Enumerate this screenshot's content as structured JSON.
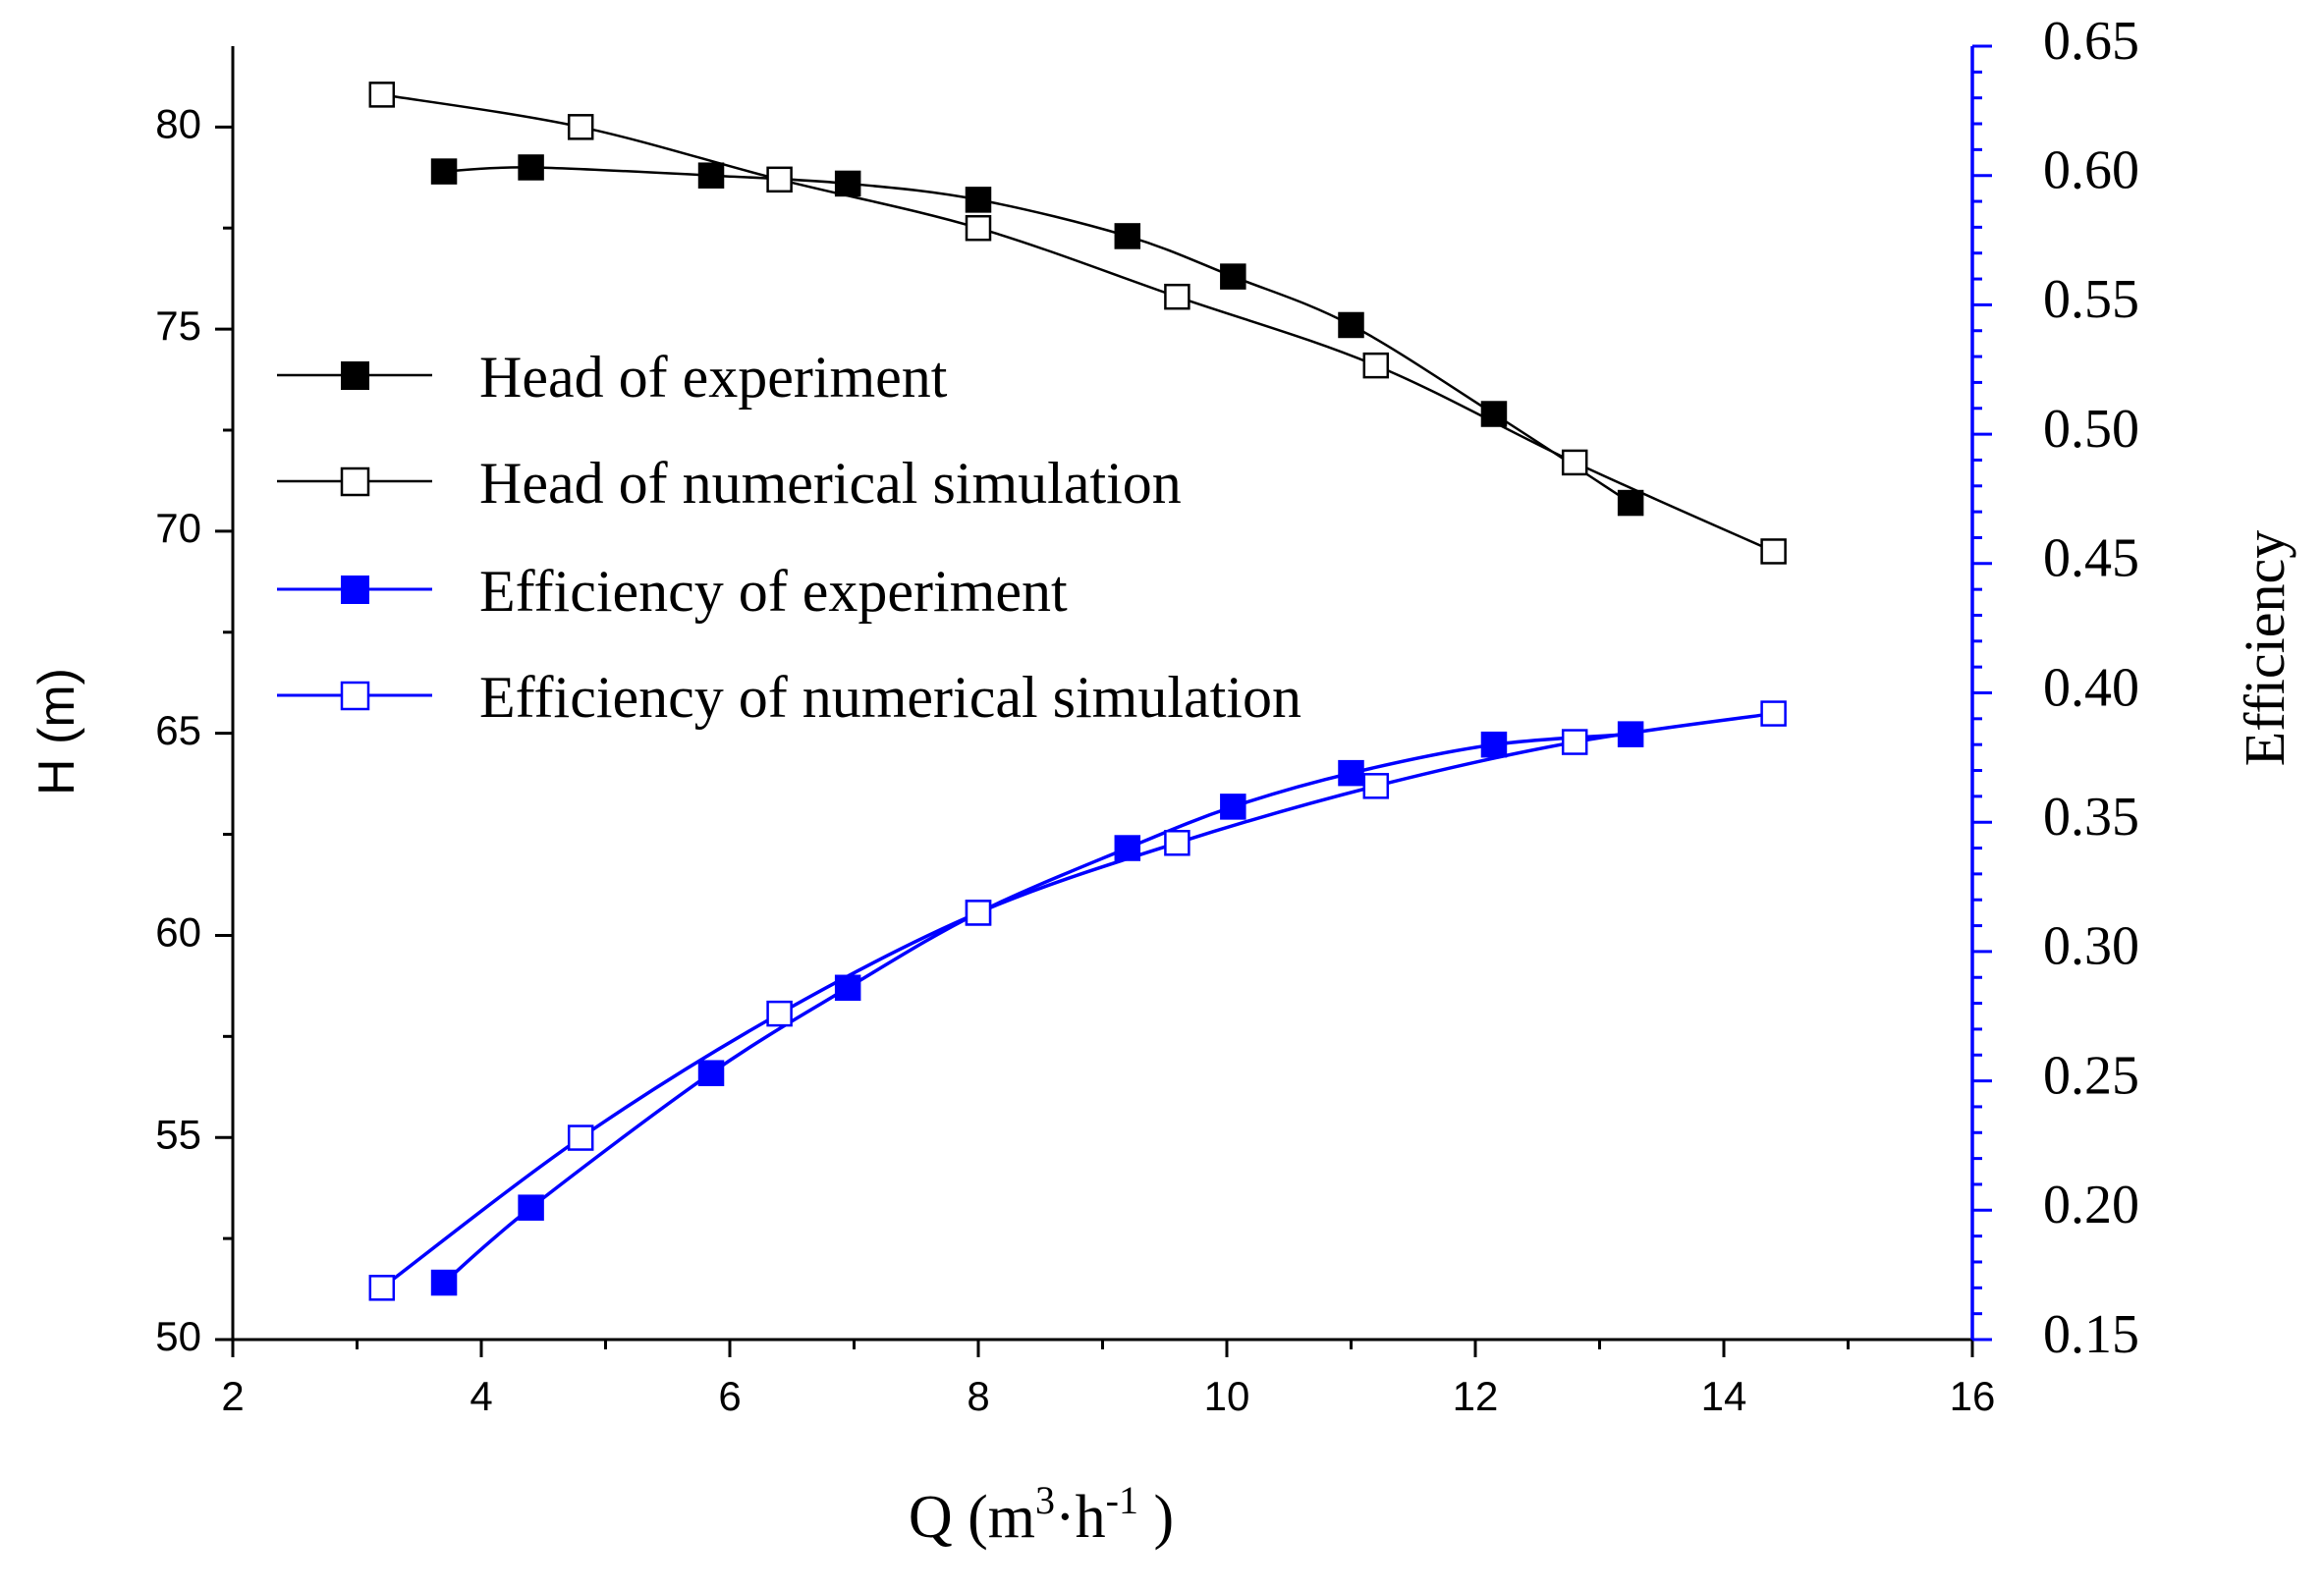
{
  "chart_data": {
    "type": "line",
    "title": "",
    "xlabel": {
      "base": "Q (m",
      "sup1": "3",
      "mid": "·h",
      "sup2": "-1",
      "end": " )"
    },
    "ylabel": "H (m)",
    "y2label": "Efficiency",
    "xlim": [
      2,
      16
    ],
    "ylim": [
      50,
      82
    ],
    "y2lim": [
      0.15,
      0.65
    ],
    "xticks": [
      2,
      4,
      6,
      8,
      10,
      12,
      14,
      16
    ],
    "yticks": [
      50,
      55,
      60,
      65,
      70,
      75,
      80
    ],
    "y2ticks": [
      0.15,
      0.2,
      0.25,
      0.3,
      0.35,
      0.4,
      0.45,
      0.5,
      0.55,
      0.6,
      0.65
    ],
    "xtick_labels": [
      "2",
      "4",
      "6",
      "8",
      "10",
      "12",
      "14",
      "16"
    ],
    "ytick_labels": [
      "50",
      "55",
      "60",
      "65",
      "70",
      "75",
      "80"
    ],
    "y2tick_labels": [
      "0.15",
      "0.20",
      "0.25",
      "0.30",
      "0.35",
      "0.40",
      "0.45",
      "0.50",
      "0.55",
      "0.60",
      "0.65"
    ],
    "legend_position": "upper-left",
    "colors": {
      "black": "#000000",
      "blue": "#0000ff"
    },
    "series": [
      {
        "name": "Head of experiment",
        "axis": "left",
        "marker": "filled-square",
        "color": "#000000",
        "x": [
          3.7,
          4.4,
          5.85,
          6.95,
          8.0,
          9.2,
          10.05,
          11.0,
          12.15,
          13.25
        ],
        "y": [
          78.9,
          79.0,
          78.8,
          78.6,
          78.2,
          77.3,
          76.3,
          75.1,
          72.9,
          70.7
        ]
      },
      {
        "name": "Head of numerical simulation",
        "axis": "left",
        "marker": "open-square",
        "color": "#000000",
        "x": [
          3.2,
          4.8,
          6.4,
          8.0,
          9.6,
          11.2,
          12.8,
          14.4
        ],
        "y": [
          80.8,
          80.0,
          78.7,
          77.5,
          75.8,
          74.1,
          71.7,
          69.5
        ]
      },
      {
        "name": "Efficiency of experiment",
        "axis": "right",
        "marker": "filled-square",
        "color": "#0000ff",
        "x": [
          3.7,
          4.4,
          5.85,
          6.95,
          8.0,
          9.2,
          10.05,
          11.0,
          12.15,
          13.25
        ],
        "y": [
          0.172,
          0.201,
          0.253,
          0.286,
          0.315,
          0.34,
          0.356,
          0.369,
          0.38,
          0.384
        ]
      },
      {
        "name": "Efficiency of numerical simulation",
        "axis": "right",
        "marker": "open-square",
        "color": "#0000ff",
        "x": [
          3.2,
          4.8,
          6.4,
          8.0,
          9.6,
          11.2,
          12.8,
          14.4
        ],
        "y": [
          0.17,
          0.228,
          0.276,
          0.315,
          0.342,
          0.364,
          0.381,
          0.392
        ]
      }
    ]
  }
}
